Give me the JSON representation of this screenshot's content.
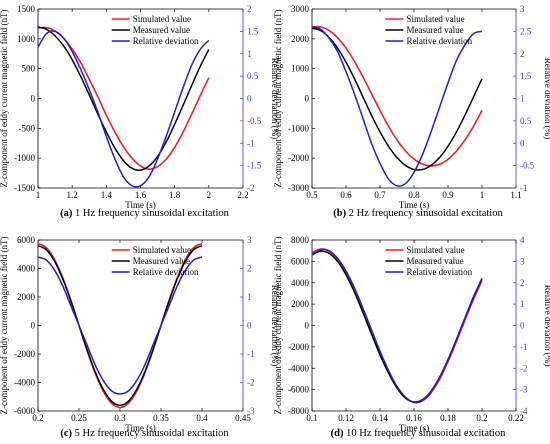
{
  "colors": {
    "simulated": "#e8202a",
    "measured": "#000000",
    "deviation": "#1f1fd6",
    "right_axis": "#3a3ad9"
  },
  "chart_data": [
    {
      "type": "line",
      "caption_letter": "(a)",
      "caption_text": " 1 Hz frequency sinusoidal excitation",
      "xlabel": "Time (s)",
      "ylabel": "Z-component of eddy current magnetic field (nT)",
      "y2label": "Relative deviation (%)",
      "xlim": [
        1,
        2.2
      ],
      "ylim": [
        -1500,
        1500
      ],
      "y2lim": [
        -2,
        2
      ],
      "xticks": [
        1,
        1.2,
        1.4,
        1.6,
        1.8,
        2,
        2.2
      ],
      "yticks": [
        -1500,
        -1000,
        -500,
        0,
        500,
        1000,
        1500
      ],
      "y2ticks": [
        -2,
        -1.5,
        -1,
        -0.5,
        0,
        0.5,
        1,
        1.5,
        2
      ],
      "legend": [
        "Simulated value",
        "Measured value",
        "Relative deviation"
      ],
      "legend_position": "top-right",
      "series": [
        {
          "name": "Simulated value",
          "axis": "left",
          "x": [
            1.0,
            1.05,
            1.1,
            1.15,
            1.2,
            1.25,
            1.3,
            1.35,
            1.4,
            1.45,
            1.5,
            1.55,
            1.6,
            1.65,
            1.7,
            1.75,
            1.8,
            1.85,
            1.9,
            1.95,
            2.0
          ],
          "y": [
            1180,
            1190,
            1130,
            1010,
            830,
            600,
            320,
            30,
            -280,
            -560,
            -810,
            -1000,
            -1130,
            -1185,
            -1140,
            -1020,
            -820,
            -560,
            -260,
            50,
            350
          ]
        },
        {
          "name": "Measured value",
          "axis": "left",
          "x": [
            1.0,
            1.05,
            1.1,
            1.15,
            1.2,
            1.25,
            1.3,
            1.35,
            1.4,
            1.45,
            1.5,
            1.55,
            1.6,
            1.65,
            1.7,
            1.75,
            1.8,
            1.85,
            1.9,
            1.95,
            2.0
          ],
          "y": [
            1200,
            1160,
            1050,
            880,
            650,
            370,
            60,
            -260,
            -560,
            -830,
            -1040,
            -1170,
            -1200,
            -1130,
            -970,
            -730,
            -430,
            -110,
            220,
            540,
            820
          ]
        },
        {
          "name": "Relative deviation",
          "axis": "right",
          "x": [
            1.0,
            1.05,
            1.1,
            1.15,
            1.2,
            1.25,
            1.3,
            1.35,
            1.4,
            1.45,
            1.5,
            1.55,
            1.6,
            1.65,
            1.7,
            1.75,
            1.8,
            1.85,
            1.9,
            1.95,
            2.0
          ],
          "y": [
            1.15,
            1.45,
            1.5,
            1.35,
            1.05,
            0.65,
            0.2,
            -0.3,
            -0.85,
            -1.35,
            -1.75,
            -1.95,
            -1.95,
            -1.75,
            -1.35,
            -0.85,
            -0.3,
            0.25,
            0.75,
            1.1,
            1.3
          ]
        }
      ]
    },
    {
      "type": "line",
      "caption_letter": "(b)",
      "caption_text": " 2 Hz frequency sinusoidal excitation",
      "xlabel": "Time (s)",
      "ylabel": "Z-component of eddy current magnetic field (nT)",
      "y2label": "Relative deviation (%)",
      "xlim": [
        0.5,
        1.1
      ],
      "ylim": [
        -3000,
        3000
      ],
      "y2lim": [
        -1,
        3
      ],
      "xticks": [
        0.5,
        0.6,
        0.7,
        0.8,
        0.9,
        1,
        1.1
      ],
      "yticks": [
        -3000,
        -2000,
        -1000,
        0,
        1000,
        2000,
        3000
      ],
      "y2ticks": [
        -1,
        -0.5,
        0,
        0.5,
        1,
        1.5,
        2,
        2.5,
        3
      ],
      "legend": [
        "Simulated value",
        "Measured value",
        "Relative deviation"
      ],
      "legend_position": "top-right",
      "series": [
        {
          "name": "Simulated value",
          "axis": "left",
          "x": [
            0.5,
            0.525,
            0.55,
            0.575,
            0.6,
            0.625,
            0.65,
            0.675,
            0.7,
            0.725,
            0.75,
            0.775,
            0.8,
            0.825,
            0.85,
            0.875,
            0.9,
            0.925,
            0.95,
            0.975,
            1.0
          ],
          "y": [
            2400,
            2400,
            2280,
            2040,
            1690,
            1240,
            720,
            160,
            -400,
            -930,
            -1390,
            -1760,
            -2030,
            -2200,
            -2260,
            -2210,
            -2040,
            -1760,
            -1390,
            -930,
            -400
          ]
        },
        {
          "name": "Measured value",
          "axis": "left",
          "x": [
            0.5,
            0.525,
            0.55,
            0.575,
            0.6,
            0.625,
            0.65,
            0.675,
            0.7,
            0.725,
            0.75,
            0.775,
            0.8,
            0.825,
            0.85,
            0.875,
            0.9,
            0.925,
            0.95,
            0.975,
            1.0
          ],
          "y": [
            2350,
            2280,
            2050,
            1690,
            1220,
            660,
            50,
            -560,
            -1120,
            -1600,
            -1980,
            -2240,
            -2380,
            -2380,
            -2240,
            -1980,
            -1600,
            -1120,
            -560,
            50,
            660
          ]
        },
        {
          "name": "Relative deviation",
          "axis": "right",
          "x": [
            0.5,
            0.525,
            0.55,
            0.575,
            0.6,
            0.625,
            0.65,
            0.675,
            0.7,
            0.725,
            0.75,
            0.775,
            0.8,
            0.825,
            0.85,
            0.875,
            0.9,
            0.925,
            0.95,
            0.975,
            1.0
          ],
          "y": [
            2.6,
            2.55,
            2.35,
            2.05,
            1.6,
            1.1,
            0.55,
            0.0,
            -0.45,
            -0.8,
            -0.95,
            -0.9,
            -0.65,
            -0.25,
            0.25,
            0.8,
            1.35,
            1.85,
            2.2,
            2.45,
            2.5
          ]
        }
      ]
    },
    {
      "type": "line",
      "caption_letter": "(c)",
      "caption_text": " 5 Hz frequency sinusoidal excitation",
      "xlabel": "Time (s)",
      "ylabel": "Z-component of eddy current magnetic field (nT)",
      "y2label": "Relative deviation (%)",
      "xlim": [
        0.2,
        0.45
      ],
      "ylim": [
        -6000,
        6000
      ],
      "y2lim": [
        -3,
        3
      ],
      "xticks": [
        0.2,
        0.25,
        0.3,
        0.35,
        0.4,
        0.45
      ],
      "yticks": [
        -6000,
        -4000,
        -2000,
        0,
        2000,
        4000,
        6000
      ],
      "y2ticks": [
        -3,
        -2,
        -1,
        0,
        1,
        2,
        3
      ],
      "legend": [
        "Simulated value",
        "Measured value",
        "Relative deviation"
      ],
      "legend_position": "top-right",
      "series": [
        {
          "name": "Simulated value",
          "axis": "left",
          "x": [
            0.2,
            0.21,
            0.22,
            0.23,
            0.24,
            0.25,
            0.26,
            0.27,
            0.28,
            0.29,
            0.3,
            0.31,
            0.32,
            0.33,
            0.34,
            0.35,
            0.36,
            0.37,
            0.38,
            0.39,
            0.4
          ],
          "y": [
            5750,
            5470,
            4650,
            3380,
            1780,
            0,
            -1780,
            -3380,
            -4650,
            -5470,
            -5750,
            -5470,
            -4650,
            -3380,
            -1780,
            0,
            1780,
            3380,
            4650,
            5470,
            5750
          ]
        },
        {
          "name": "Measured value",
          "axis": "left",
          "x": [
            0.2,
            0.21,
            0.22,
            0.23,
            0.24,
            0.25,
            0.26,
            0.27,
            0.28,
            0.29,
            0.3,
            0.31,
            0.32,
            0.33,
            0.34,
            0.35,
            0.36,
            0.37,
            0.38,
            0.39,
            0.4
          ],
          "y": [
            5600,
            5330,
            4530,
            3290,
            1730,
            0,
            -1730,
            -3290,
            -4530,
            -5330,
            -5600,
            -5330,
            -4530,
            -3290,
            -1730,
            0,
            1730,
            3290,
            4530,
            5330,
            5600
          ]
        },
        {
          "name": "Relative deviation",
          "axis": "right",
          "x": [
            0.2,
            0.21,
            0.22,
            0.23,
            0.24,
            0.25,
            0.26,
            0.27,
            0.28,
            0.29,
            0.3,
            0.31,
            0.32,
            0.33,
            0.34,
            0.35,
            0.36,
            0.37,
            0.38,
            0.39,
            0.4
          ],
          "y": [
            2.4,
            2.3,
            1.95,
            1.4,
            0.7,
            0.0,
            -0.7,
            -1.4,
            -1.95,
            -2.3,
            -2.4,
            -2.3,
            -1.95,
            -1.4,
            -0.7,
            0.0,
            0.7,
            1.4,
            1.95,
            2.3,
            2.4
          ]
        }
      ]
    },
    {
      "type": "line",
      "caption_letter": "(d)",
      "caption_text": " 10 Hz frequency sinusoidal excitation",
      "xlabel": "Time (s)",
      "ylabel": "Z-component of eddy current magnetic field (nT)",
      "y2label": "Relative deviation (%)",
      "xlim": [
        0.1,
        0.22
      ],
      "ylim": [
        -8000,
        8000
      ],
      "y2lim": [
        -4,
        4
      ],
      "xticks": [
        0.1,
        0.12,
        0.14,
        0.16,
        0.18,
        0.2,
        0.22
      ],
      "yticks": [
        -8000,
        -6000,
        -4000,
        -2000,
        0,
        2000,
        4000,
        6000,
        8000
      ],
      "y2ticks": [
        -4,
        -3,
        -2,
        -1,
        0,
        1,
        2,
        3,
        4
      ],
      "legend": [
        "Simulated value",
        "Measured value",
        "Relative deviation"
      ],
      "legend_position": "top-right",
      "series": [
        {
          "name": "Simulated value",
          "axis": "left",
          "x": [
            0.1,
            0.105,
            0.11,
            0.115,
            0.12,
            0.125,
            0.13,
            0.135,
            0.14,
            0.145,
            0.15,
            0.155,
            0.16,
            0.165,
            0.17,
            0.175,
            0.18,
            0.185,
            0.19,
            0.195,
            0.2
          ],
          "y": [
            6800,
            7150,
            6950,
            6200,
            4950,
            3300,
            1400,
            -600,
            -2550,
            -4300,
            -5750,
            -6750,
            -7200,
            -7050,
            -6300,
            -5050,
            -3400,
            -1500,
            500,
            2450,
            4200
          ]
        },
        {
          "name": "Measured value",
          "axis": "left",
          "x": [
            0.1,
            0.105,
            0.11,
            0.115,
            0.12,
            0.125,
            0.13,
            0.135,
            0.14,
            0.145,
            0.15,
            0.155,
            0.16,
            0.165,
            0.17,
            0.175,
            0.18,
            0.185,
            0.19,
            0.195,
            0.2
          ],
          "y": [
            6600,
            6950,
            6750,
            6000,
            4750,
            3100,
            1200,
            -800,
            -2750,
            -4450,
            -5850,
            -6800,
            -7150,
            -6950,
            -6150,
            -4850,
            -3200,
            -1300,
            700,
            2650,
            4400
          ]
        },
        {
          "name": "Relative deviation",
          "axis": "right",
          "x": [
            0.1,
            0.105,
            0.11,
            0.115,
            0.12,
            0.125,
            0.13,
            0.135,
            0.14,
            0.145,
            0.15,
            0.155,
            0.16,
            0.165,
            0.17,
            0.175,
            0.18,
            0.185,
            0.19,
            0.195,
            0.2
          ],
          "y": [
            3.3,
            3.55,
            3.5,
            3.15,
            2.55,
            1.75,
            0.8,
            -0.2,
            -1.2,
            -2.1,
            -2.85,
            -3.35,
            -3.6,
            -3.5,
            -3.1,
            -2.45,
            -1.6,
            -0.65,
            0.35,
            1.35,
            2.2
          ]
        }
      ]
    }
  ]
}
